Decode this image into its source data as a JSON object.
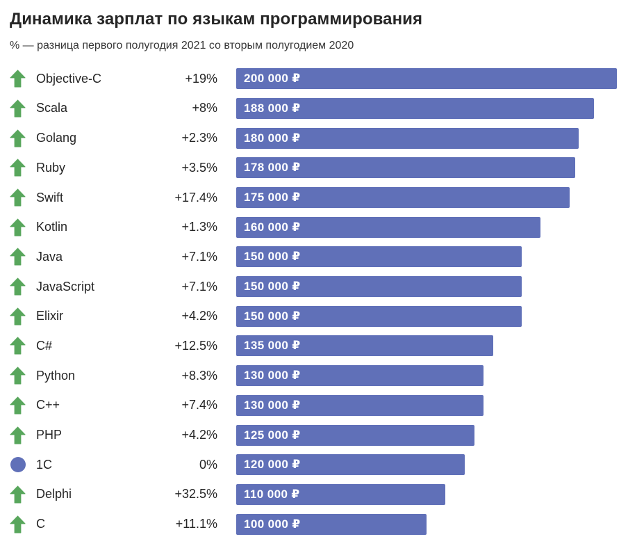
{
  "header": {
    "title": "Динамика зарплат по языкам программирования",
    "subtitle": "% — разница первого полугодия 2021 со вторым полугодием 2020"
  },
  "colors": {
    "bar": "#6070B8",
    "arrow_up": "#58A65C",
    "flat_dot": "#6070B8",
    "title_text": "#262626",
    "body_text": "#262626",
    "bar_text": "#FFFFFF",
    "background": "#FFFFFF"
  },
  "icons": {
    "up_arrow": "arrow-up-icon",
    "flat": "dot-icon"
  },
  "chart_data": {
    "type": "bar",
    "orientation": "horizontal",
    "title": "Динамика зарплат по языкам программирования",
    "subtitle": "% — разница первого полугодия 2021 со вторым полугодием 2020",
    "unit": "₽",
    "xlabel": "",
    "ylabel": "",
    "xlim": [
      0,
      200000
    ],
    "grid": false,
    "legend": false,
    "rows": [
      {
        "language": "Objective-C",
        "change": "+19%",
        "trend": "up",
        "value": 200000,
        "value_label": "200 000 ₽"
      },
      {
        "language": "Scala",
        "change": "+8%",
        "trend": "up",
        "value": 188000,
        "value_label": "188 000 ₽"
      },
      {
        "language": "Golang",
        "change": "+2.3%",
        "trend": "up",
        "value": 180000,
        "value_label": "180 000 ₽"
      },
      {
        "language": "Ruby",
        "change": "+3.5%",
        "trend": "up",
        "value": 178000,
        "value_label": "178 000 ₽"
      },
      {
        "language": "Swift",
        "change": "+17.4%",
        "trend": "up",
        "value": 175000,
        "value_label": "175 000 ₽"
      },
      {
        "language": "Kotlin",
        "change": "+1.3%",
        "trend": "up",
        "value": 160000,
        "value_label": "160 000 ₽"
      },
      {
        "language": "Java",
        "change": "+7.1%",
        "trend": "up",
        "value": 150000,
        "value_label": "150 000 ₽"
      },
      {
        "language": "JavaScript",
        "change": "+7.1%",
        "trend": "up",
        "value": 150000,
        "value_label": "150 000 ₽"
      },
      {
        "language": "Elixir",
        "change": "+4.2%",
        "trend": "up",
        "value": 150000,
        "value_label": "150 000 ₽"
      },
      {
        "language": "C#",
        "change": "+12.5%",
        "trend": "up",
        "value": 135000,
        "value_label": "135 000 ₽"
      },
      {
        "language": "Python",
        "change": "+8.3%",
        "trend": "up",
        "value": 130000,
        "value_label": "130 000 ₽"
      },
      {
        "language": "C++",
        "change": "+7.4%",
        "trend": "up",
        "value": 130000,
        "value_label": "130 000 ₽"
      },
      {
        "language": "PHP",
        "change": "+4.2%",
        "trend": "up",
        "value": 125000,
        "value_label": "125 000 ₽"
      },
      {
        "language": "1C",
        "change": "0%",
        "trend": "flat",
        "value": 120000,
        "value_label": "120 000 ₽"
      },
      {
        "language": "Delphi",
        "change": "+32.5%",
        "trend": "up",
        "value": 110000,
        "value_label": "110 000 ₽"
      },
      {
        "language": "C",
        "change": "+11.1%",
        "trend": "up",
        "value": 100000,
        "value_label": "100 000 ₽"
      }
    ]
  }
}
